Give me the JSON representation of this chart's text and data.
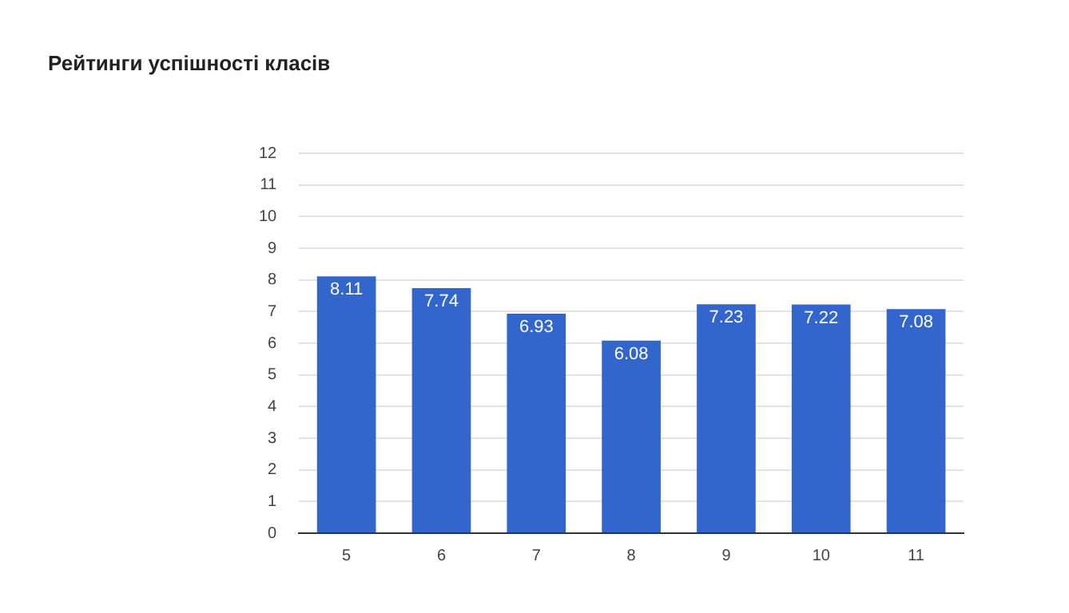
{
  "chart_data": {
    "type": "bar",
    "title": "Рейтинги успішності класів",
    "categories": [
      "5",
      "6",
      "7",
      "8",
      "9",
      "10",
      "11"
    ],
    "values": [
      8.11,
      7.74,
      6.93,
      6.08,
      7.23,
      7.22,
      7.08
    ],
    "color": "#3366cc",
    "ylim": [
      0,
      12
    ],
    "yticks": [
      0,
      1,
      2,
      3,
      4,
      5,
      6,
      7,
      8,
      9,
      10,
      11,
      12
    ],
    "grid": "y",
    "data_labels": true,
    "legend": false
  }
}
